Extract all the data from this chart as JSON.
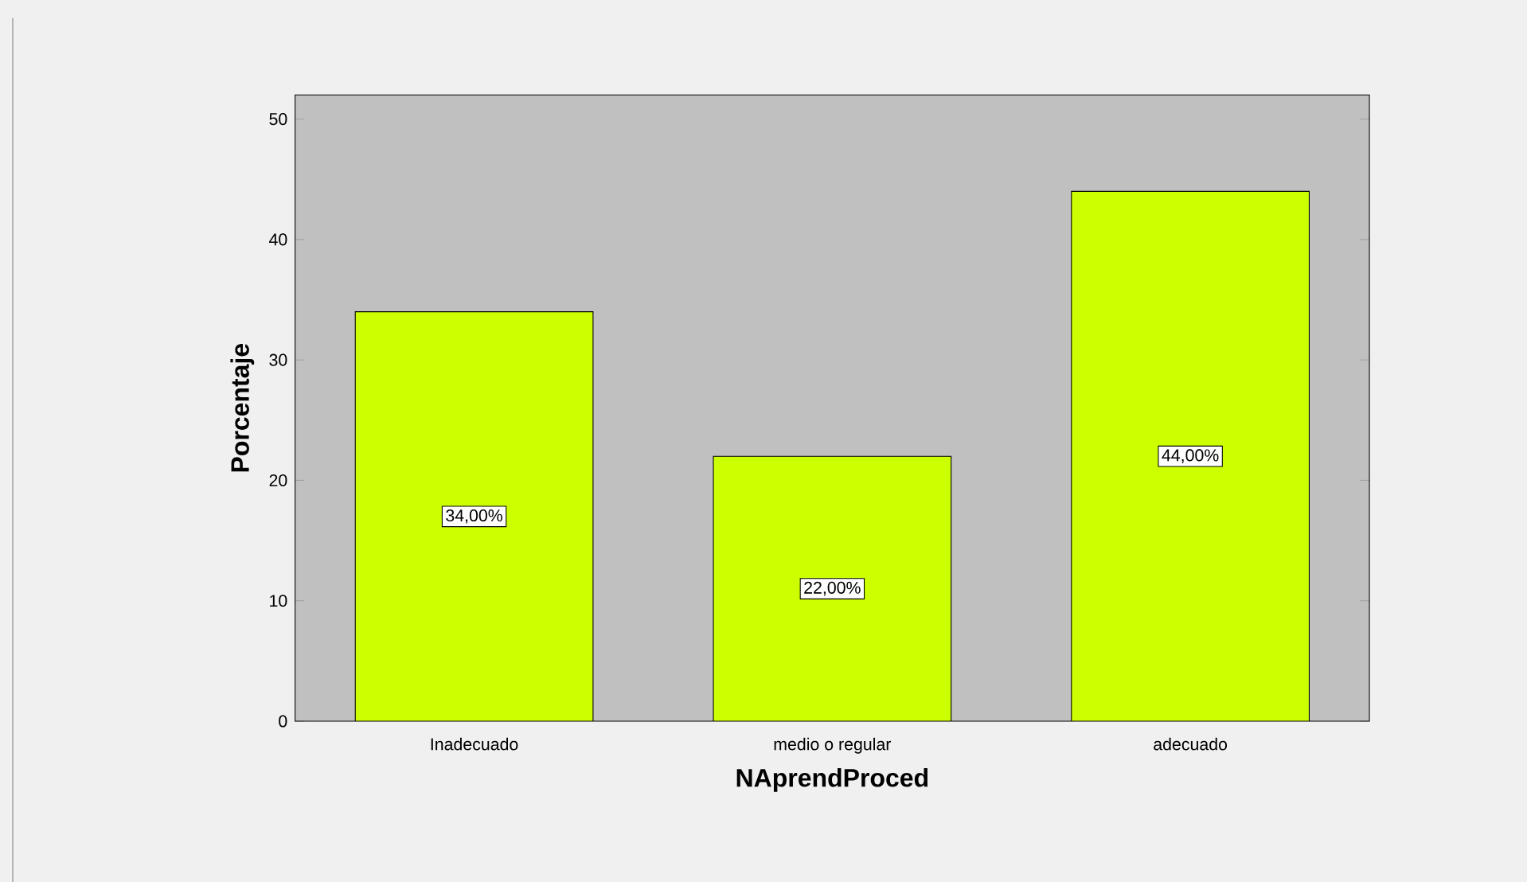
{
  "chart_data": {
    "type": "bar",
    "xlabel": "NAprendProced",
    "ylabel": "Porcentaje",
    "categories": [
      "Inadecuado",
      "medio o regular",
      "adecuado"
    ],
    "values": [
      34,
      22,
      44
    ],
    "value_labels": [
      "34,00%",
      "22,00%",
      "44,00%"
    ],
    "color": "#ccff00",
    "ylim": [
      0,
      52
    ],
    "yticks": [
      0,
      10,
      20,
      30,
      40,
      50
    ]
  }
}
